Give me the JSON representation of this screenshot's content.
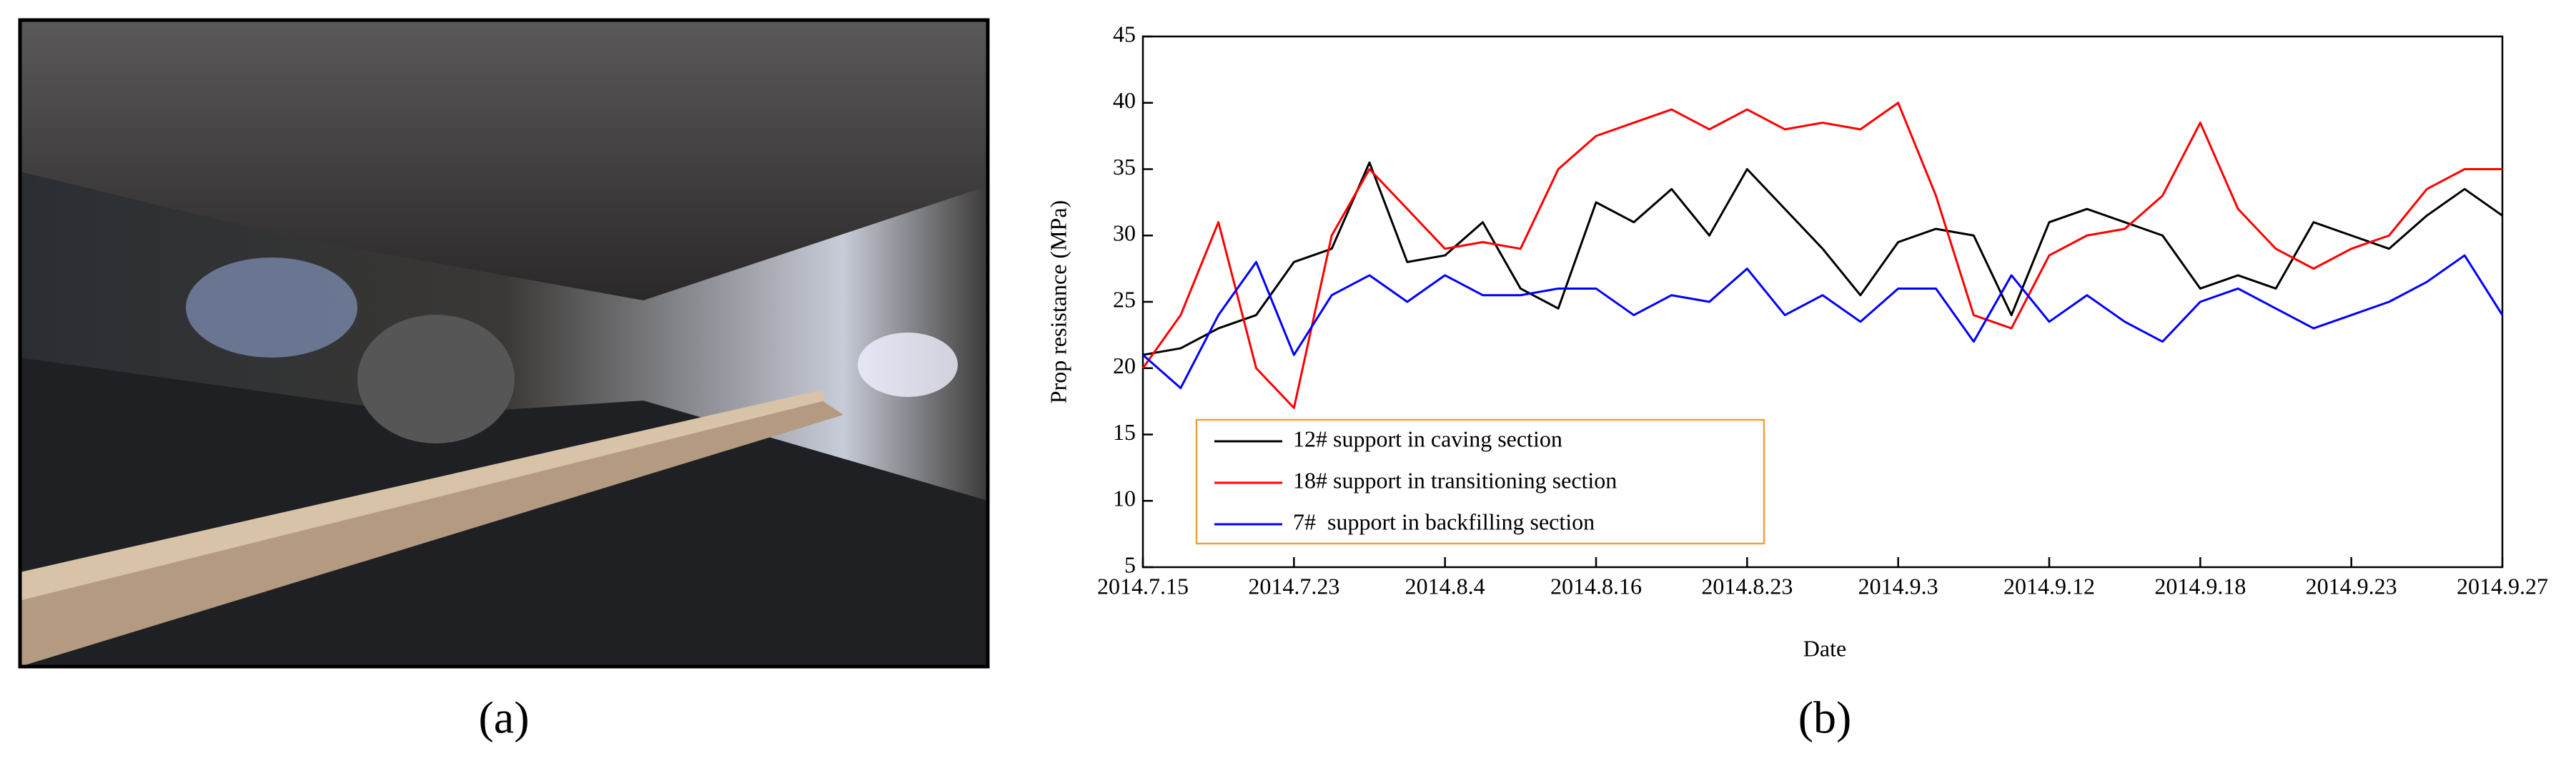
{
  "panel_labels": [
    "(a)",
    "(b)"
  ],
  "chart_data": {
    "type": "line",
    "x_label": "Date",
    "y_label": "Prop resistance (MPa)",
    "x": [
      0,
      0.25,
      0.5,
      0.75,
      1,
      1.25,
      1.5,
      1.75,
      2,
      2.25,
      2.5,
      2.75,
      3,
      3.25,
      3.5,
      3.75,
      4,
      4.25,
      4.5,
      4.75,
      5,
      5.25,
      5.5,
      5.75,
      6,
      6.25,
      6.5,
      6.75,
      7,
      7.25,
      7.5,
      7.75,
      8,
      8.25,
      8.5,
      8.75,
      9
    ],
    "series": [
      {
        "name": "12# support in caving section",
        "color": "#000000",
        "values": [
          21,
          21.5,
          23,
          24,
          28,
          29,
          35.5,
          28,
          28.5,
          31,
          26,
          24.5,
          32.5,
          31,
          33.5,
          30,
          35,
          32,
          29,
          25.5,
          29.5,
          30.5,
          30,
          24,
          31,
          32,
          31,
          30,
          26,
          27,
          26,
          31,
          30,
          29,
          31.5,
          33.5,
          31.5
        ]
      },
      {
        "name": "18# support in transitioning section",
        "color": "#ff0000",
        "values": [
          20,
          24,
          31,
          20,
          17,
          30,
          35,
          32,
          29,
          29.5,
          29,
          35,
          37.5,
          38.5,
          39.5,
          38,
          39.5,
          38,
          38.5,
          38,
          40,
          33,
          24,
          23,
          28.5,
          30,
          30.5,
          33,
          38.5,
          32,
          29,
          27.5,
          29,
          30,
          33.5,
          35,
          35
        ]
      },
      {
        "name": "7#  support in backfilling section",
        "color": "#0000ff",
        "values": [
          21,
          18.5,
          24,
          28,
          21,
          25.5,
          27,
          25,
          27,
          25.5,
          25.5,
          26,
          26,
          24,
          25.5,
          25,
          27.5,
          24,
          25.5,
          23.5,
          26,
          26,
          22,
          27,
          23.5,
          25.5,
          23.5,
          22,
          25,
          26,
          24.5,
          23,
          24,
          25,
          26.5,
          28.5,
          24
        ]
      }
    ],
    "xlim": [
      0,
      9
    ],
    "xticks": [
      {
        "value": 0,
        "label": "2014.7.15"
      },
      {
        "value": 1,
        "label": "2014.7.23"
      },
      {
        "value": 2,
        "label": "2014.8.4"
      },
      {
        "value": 3,
        "label": "2014.8.16"
      },
      {
        "value": 4,
        "label": "2014.8.23"
      },
      {
        "value": 5,
        "label": "2014.9.3"
      },
      {
        "value": 6,
        "label": "2014.9.12"
      },
      {
        "value": 7,
        "label": "2014.9.18"
      },
      {
        "value": 8,
        "label": "2014.9.23"
      },
      {
        "value": 9,
        "label": "2014.9.27"
      }
    ],
    "ylim": [
      5,
      45
    ],
    "yticks": [
      5,
      10,
      15,
      20,
      25,
      30,
      35,
      40,
      45
    ],
    "legend_position": "lower left",
    "legend_border_color": "#f0a040"
  }
}
